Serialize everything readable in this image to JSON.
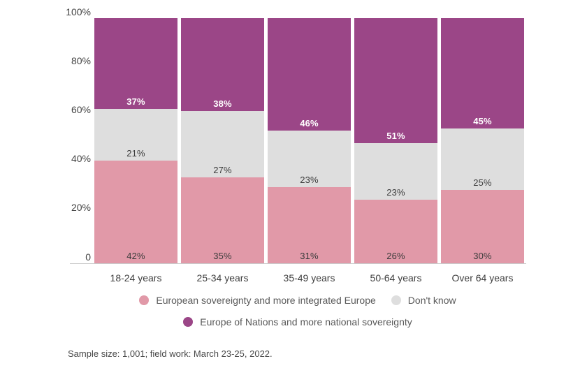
{
  "chart_data": {
    "type": "bar",
    "stacked": true,
    "orientation": "vertical",
    "grid": false,
    "legend_position": "bottom",
    "categories": [
      "18-24 years",
      "25-34 years",
      "35-49 years",
      "50-64 years",
      "Over 64 years"
    ],
    "series": [
      {
        "name": "European sovereignty and more integrated Europe",
        "color": "#e199a8",
        "label_color": "#3c3c3c",
        "label_bold": false,
        "values": [
          42,
          35,
          31,
          26,
          30
        ]
      },
      {
        "name": "Don't know",
        "color": "#dedede",
        "label_color": "#3c3c3c",
        "label_bold": false,
        "values": [
          21,
          27,
          23,
          23,
          25
        ]
      },
      {
        "name": "Europe of Nations and more national sovereignty",
        "color": "#9b4687",
        "label_color": "#ffffff",
        "label_bold": true,
        "values": [
          37,
          38,
          46,
          51,
          45
        ]
      }
    ],
    "y_ticks": [
      {
        "label": "100%",
        "value": 100
      },
      {
        "label": "80%",
        "value": 80
      },
      {
        "label": "60%",
        "value": 60
      },
      {
        "label": "40%",
        "value": 40
      },
      {
        "label": "20%",
        "value": 20
      },
      {
        "label": "0",
        "value": 0
      }
    ],
    "ylim": [
      0,
      100
    ],
    "value_suffix": "%"
  },
  "footnote": "Sample size: 1,001; field work: March 23-25, 2022."
}
